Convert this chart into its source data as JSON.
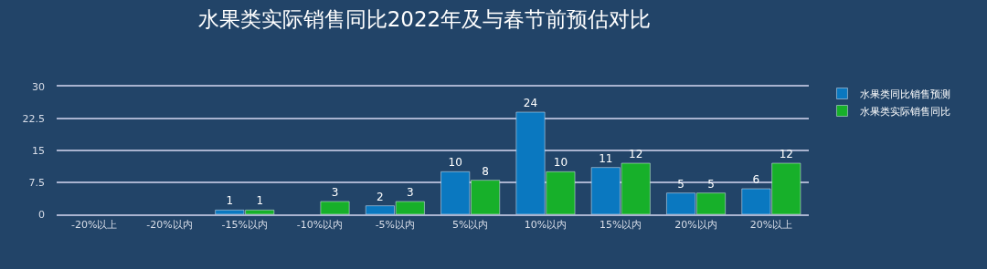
{
  "chart_data": {
    "type": "bar",
    "title": "水果类实际销售同比2022年及与春节前预估对比",
    "categories": [
      "-20%以上",
      "-20%以内",
      "-15%以内",
      "-10%以内",
      "-5%以内",
      "5%以内",
      "10%以内",
      "15%以内",
      "20%以内",
      "20%以上"
    ],
    "series": [
      {
        "name": "水果类同比销售预测",
        "color": "#0a78c0",
        "values": [
          null,
          null,
          1,
          null,
          2,
          10,
          24,
          11,
          5,
          6
        ]
      },
      {
        "name": "水果类实际销售同比",
        "color": "#17b02a",
        "values": [
          null,
          null,
          1,
          3,
          3,
          8,
          10,
          12,
          5,
          12
        ]
      }
    ],
    "ylim": [
      0,
      30
    ],
    "yticks": [
      0,
      7.5,
      15,
      22.5,
      30
    ],
    "grid": "y",
    "legend": "top right",
    "data_labels": true
  }
}
